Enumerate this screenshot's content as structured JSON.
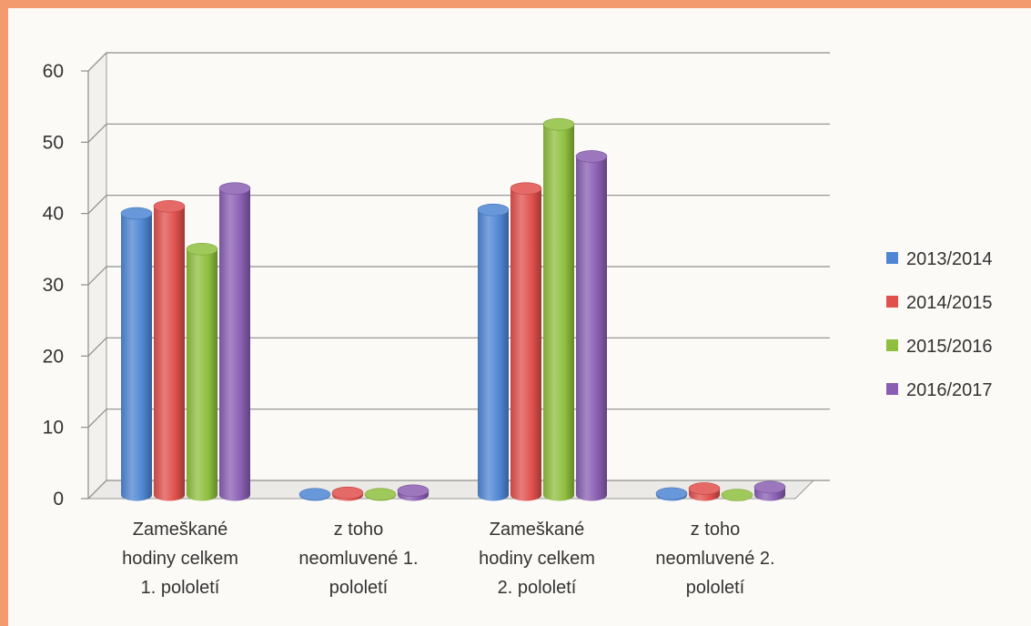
{
  "chart_data": {
    "type": "bar",
    "style": "3d-cylinder",
    "categories": [
      "Zameškané hodiny celkem 1. pololetí",
      "z toho neomluvené 1. pololetí",
      "Zameškané hodiny celkem 2. pololetí",
      "z toho neomluvené 2. pololetí"
    ],
    "category_lines": [
      [
        "Zameškané",
        "hodiny celkem",
        "1. pololetí"
      ],
      [
        "z toho",
        "neomluvené 1.",
        "pololetí"
      ],
      [
        "Zameškané",
        "hodiny celkem",
        "2. pololetí"
      ],
      [
        "z toho",
        "neomluvené 2.",
        "pololetí"
      ]
    ],
    "series": [
      {
        "name": "2013/2014",
        "color": "#4f86d4",
        "values": [
          39.5,
          0.1,
          40,
          0.2
        ]
      },
      {
        "name": "2014/2015",
        "color": "#e0504c",
        "values": [
          40.5,
          0.3,
          43,
          0.9
        ]
      },
      {
        "name": "2015/2016",
        "color": "#8fbf3e",
        "values": [
          34.5,
          0.1,
          52,
          0.0
        ]
      },
      {
        "name": "2016/2017",
        "color": "#8a5fb3",
        "values": [
          43,
          0.6,
          47.5,
          1.1
        ]
      }
    ],
    "ylim": [
      0,
      60
    ],
    "yticks": [
      0,
      10,
      20,
      30,
      40,
      50,
      60
    ],
    "grid": true,
    "legend": "right"
  }
}
